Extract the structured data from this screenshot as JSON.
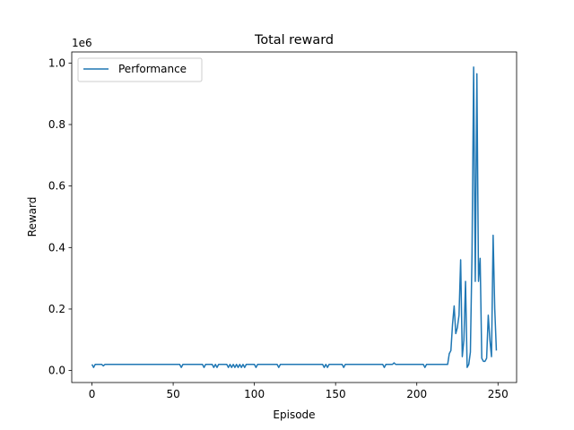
{
  "chart_data": {
    "type": "line",
    "title": "Total reward",
    "xlabel": "Episode",
    "ylabel": "Reward",
    "y_offset_label": "1e6",
    "legend": "upper left",
    "grid": false,
    "xlim": [
      -12.45,
      261.45
    ],
    "ylim": [
      -0.039,
      1.036
    ],
    "xticks": [
      0,
      50,
      100,
      150,
      200,
      250
    ],
    "yticks": [
      {
        "value": 0,
        "label": "0.0"
      },
      {
        "value": 0.2,
        "label": "0.2"
      },
      {
        "value": 0.4,
        "label": "0.4"
      },
      {
        "value": 0.6,
        "label": "0.6"
      },
      {
        "value": 0.8,
        "label": "0.8"
      },
      {
        "value": 1,
        "label": "1.0"
      }
    ],
    "x": [
      0,
      1,
      2,
      3,
      4,
      5,
      6,
      7,
      8,
      9,
      10,
      11,
      12,
      13,
      14,
      15,
      16,
      17,
      18,
      19,
      20,
      21,
      22,
      23,
      24,
      25,
      26,
      27,
      28,
      29,
      30,
      31,
      32,
      33,
      34,
      35,
      36,
      37,
      38,
      39,
      40,
      41,
      42,
      43,
      44,
      45,
      46,
      47,
      48,
      49,
      50,
      51,
      52,
      53,
      54,
      55,
      56,
      57,
      58,
      59,
      60,
      61,
      62,
      63,
      64,
      65,
      66,
      67,
      68,
      69,
      70,
      71,
      72,
      73,
      74,
      75,
      76,
      77,
      78,
      79,
      80,
      81,
      82,
      83,
      84,
      85,
      86,
      87,
      88,
      89,
      90,
      91,
      92,
      93,
      94,
      95,
      96,
      97,
      98,
      99,
      100,
      101,
      102,
      103,
      104,
      105,
      106,
      107,
      108,
      109,
      110,
      111,
      112,
      113,
      114,
      115,
      116,
      117,
      118,
      119,
      120,
      121,
      122,
      123,
      124,
      125,
      126,
      127,
      128,
      129,
      130,
      131,
      132,
      133,
      134,
      135,
      136,
      137,
      138,
      139,
      140,
      141,
      142,
      143,
      144,
      145,
      146,
      147,
      148,
      149,
      150,
      151,
      152,
      153,
      154,
      155,
      156,
      157,
      158,
      159,
      160,
      161,
      162,
      163,
      164,
      165,
      166,
      167,
      168,
      169,
      170,
      171,
      172,
      173,
      174,
      175,
      176,
      177,
      178,
      179,
      180,
      181,
      182,
      183,
      184,
      185,
      186,
      187,
      188,
      189,
      190,
      191,
      192,
      193,
      194,
      195,
      196,
      197,
      198,
      199,
      200,
      201,
      202,
      203,
      204,
      205,
      206,
      207,
      208,
      209,
      210,
      211,
      212,
      213,
      214,
      215,
      216,
      217,
      218,
      219,
      220,
      221,
      222,
      223,
      224,
      225,
      226,
      227,
      228,
      229,
      230,
      231,
      232,
      233,
      234,
      235,
      236,
      237,
      238,
      239,
      240,
      241,
      242,
      243,
      244,
      245,
      246,
      247,
      248,
      249
    ],
    "series": [
      {
        "name": "Performance",
        "color": "#1f77b4",
        "values": [
          0.02,
          0.01,
          0.02,
          0.02,
          0.02,
          0.02,
          0.02,
          0.015,
          0.02,
          0.02,
          0.02,
          0.02,
          0.02,
          0.02,
          0.02,
          0.02,
          0.02,
          0.02,
          0.02,
          0.02,
          0.02,
          0.02,
          0.02,
          0.02,
          0.02,
          0.02,
          0.02,
          0.02,
          0.02,
          0.02,
          0.02,
          0.02,
          0.02,
          0.02,
          0.02,
          0.02,
          0.02,
          0.02,
          0.02,
          0.02,
          0.02,
          0.02,
          0.02,
          0.02,
          0.02,
          0.02,
          0.02,
          0.02,
          0.02,
          0.02,
          0.02,
          0.02,
          0.02,
          0.02,
          0.02,
          0.01,
          0.02,
          0.02,
          0.02,
          0.02,
          0.02,
          0.02,
          0.02,
          0.02,
          0.02,
          0.02,
          0.02,
          0.02,
          0.02,
          0.01,
          0.02,
          0.02,
          0.02,
          0.02,
          0.02,
          0.01,
          0.02,
          0.01,
          0.02,
          0.02,
          0.02,
          0.02,
          0.02,
          0.02,
          0.01,
          0.02,
          0.01,
          0.02,
          0.01,
          0.02,
          0.01,
          0.02,
          0.01,
          0.02,
          0.01,
          0.02,
          0.02,
          0.02,
          0.02,
          0.02,
          0.02,
          0.01,
          0.02,
          0.02,
          0.02,
          0.02,
          0.02,
          0.02,
          0.02,
          0.02,
          0.02,
          0.02,
          0.02,
          0.02,
          0.02,
          0.01,
          0.02,
          0.02,
          0.02,
          0.02,
          0.02,
          0.02,
          0.02,
          0.02,
          0.02,
          0.02,
          0.02,
          0.02,
          0.02,
          0.02,
          0.02,
          0.02,
          0.02,
          0.02,
          0.02,
          0.02,
          0.02,
          0.02,
          0.02,
          0.02,
          0.02,
          0.02,
          0.02,
          0.01,
          0.02,
          0.01,
          0.02,
          0.02,
          0.02,
          0.02,
          0.02,
          0.02,
          0.02,
          0.02,
          0.02,
          0.01,
          0.02,
          0.02,
          0.02,
          0.02,
          0.02,
          0.02,
          0.02,
          0.02,
          0.02,
          0.02,
          0.02,
          0.02,
          0.02,
          0.02,
          0.02,
          0.02,
          0.02,
          0.02,
          0.02,
          0.02,
          0.02,
          0.02,
          0.02,
          0.02,
          0.01,
          0.02,
          0.02,
          0.02,
          0.02,
          0.02,
          0.025,
          0.02,
          0.02,
          0.02,
          0.02,
          0.02,
          0.02,
          0.02,
          0.02,
          0.02,
          0.02,
          0.02,
          0.02,
          0.02,
          0.02,
          0.02,
          0.02,
          0.02,
          0.02,
          0.01,
          0.02,
          0.02,
          0.02,
          0.02,
          0.02,
          0.02,
          0.02,
          0.02,
          0.02,
          0.02,
          0.02,
          0.02,
          0.02,
          0.02,
          0.055,
          0.065,
          0.15,
          0.21,
          0.12,
          0.14,
          0.18,
          0.36,
          0.045,
          0.1,
          0.29,
          0.01,
          0.02,
          0.06,
          0.38,
          0.987,
          0.29,
          0.965,
          0.29,
          0.365,
          0.04,
          0.03,
          0.03,
          0.04,
          0.18,
          0.1,
          0.045,
          0.44,
          0.2,
          0.065
        ]
      }
    ]
  }
}
